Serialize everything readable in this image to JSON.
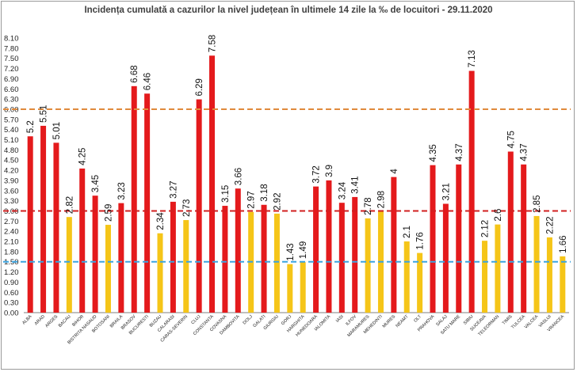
{
  "chart_data": {
    "type": "bar",
    "title": "Incidența cumulată a cazurilor la nivel județean în ultimele 14 zile la ‰ de locuitori - 29.11.2020",
    "xlabel": "",
    "ylabel": "",
    "ylim": [
      0,
      8.1
    ],
    "yticks": [
      "0.00",
      "0.30",
      "0.60",
      "0.90",
      "1.20",
      "1.50",
      "1.80",
      "2.10",
      "2.40",
      "2.70",
      "3.00",
      "3.30",
      "3.60",
      "3.90",
      "4.20",
      "4.50",
      "4.80",
      "5.10",
      "5.40",
      "5.70",
      "6.00",
      "6.30",
      "6.60",
      "6.90",
      "7.20",
      "7.50",
      "7.80",
      "8.10"
    ],
    "grid": false,
    "legend": "none",
    "categories": [
      "ALBA",
      "ARAD",
      "ARGES",
      "BACAU",
      "BIHOR",
      "BISTRITA NASAUD",
      "BOTOSANI",
      "BRAILA",
      "BRASOV",
      "BUCURESTI",
      "BUZAU",
      "CALARASI",
      "CARAS-SEVERIN",
      "CLUJ",
      "CONSTANTA",
      "COVASNA",
      "DAMBOVITA",
      "DOLJ",
      "GALATI",
      "GIURGIU",
      "GORJ",
      "HARGHITA",
      "HUNEDOARA",
      "IALOMITA",
      "IASI",
      "ILFOV",
      "MARAMURES",
      "MEHEDINTI",
      "MURES",
      "NEAMT",
      "OLT",
      "PRAHOVA",
      "SALAJ",
      "SATU MARE",
      "SIBIU",
      "SUCEAVA",
      "TELEORMAN",
      "TIMIS",
      "TULCEA",
      "VALCEA",
      "VASLUI",
      "VRANCEA"
    ],
    "values": [
      5.2,
      5.51,
      5.01,
      2.82,
      4.25,
      3.45,
      2.59,
      3.23,
      6.68,
      6.46,
      2.34,
      3.27,
      2.73,
      6.29,
      7.58,
      3.15,
      3.66,
      2.97,
      3.18,
      2.92,
      1.43,
      1.49,
      3.72,
      3.9,
      3.24,
      3.41,
      2.78,
      2.98,
      4,
      2.1,
      1.76,
      4.35,
      3.21,
      4.37,
      7.13,
      2.12,
      2.6,
      4.75,
      4.37,
      2.85,
      2.22,
      1.66
    ],
    "value_labels": [
      "5.2",
      "5.51",
      "5.01",
      "2.82",
      "4.25",
      "3.45",
      "2.59",
      "3.23",
      "6.68",
      "6.46",
      "2.34",
      "3.27",
      "2.73",
      "6.29",
      "7.58",
      "3.15",
      "3.66",
      "2.97",
      "3.18",
      "2.92",
      "1.43",
      "1.49",
      "3.72",
      "3.9",
      "3.24",
      "3.41",
      "2.78",
      "2.98",
      "4",
      "2.1",
      "1.76",
      "4.35",
      "3.21",
      "4.37",
      "7.13",
      "2.12",
      "2.6",
      "4.75",
      "4.37",
      "2.85",
      "2.22",
      "1.66"
    ],
    "thresholds": [
      {
        "value": 6.0,
        "color": "#e08a3c",
        "style": "dashed"
      },
      {
        "value": 3.0,
        "color": "#d21f1f",
        "style": "dashed"
      },
      {
        "value": 1.5,
        "color": "#3ba4e0",
        "style": "dashed"
      }
    ],
    "colors": {
      "high": "#e41a1c",
      "low": "#f5c518",
      "axis": "#7f7f7f"
    }
  }
}
